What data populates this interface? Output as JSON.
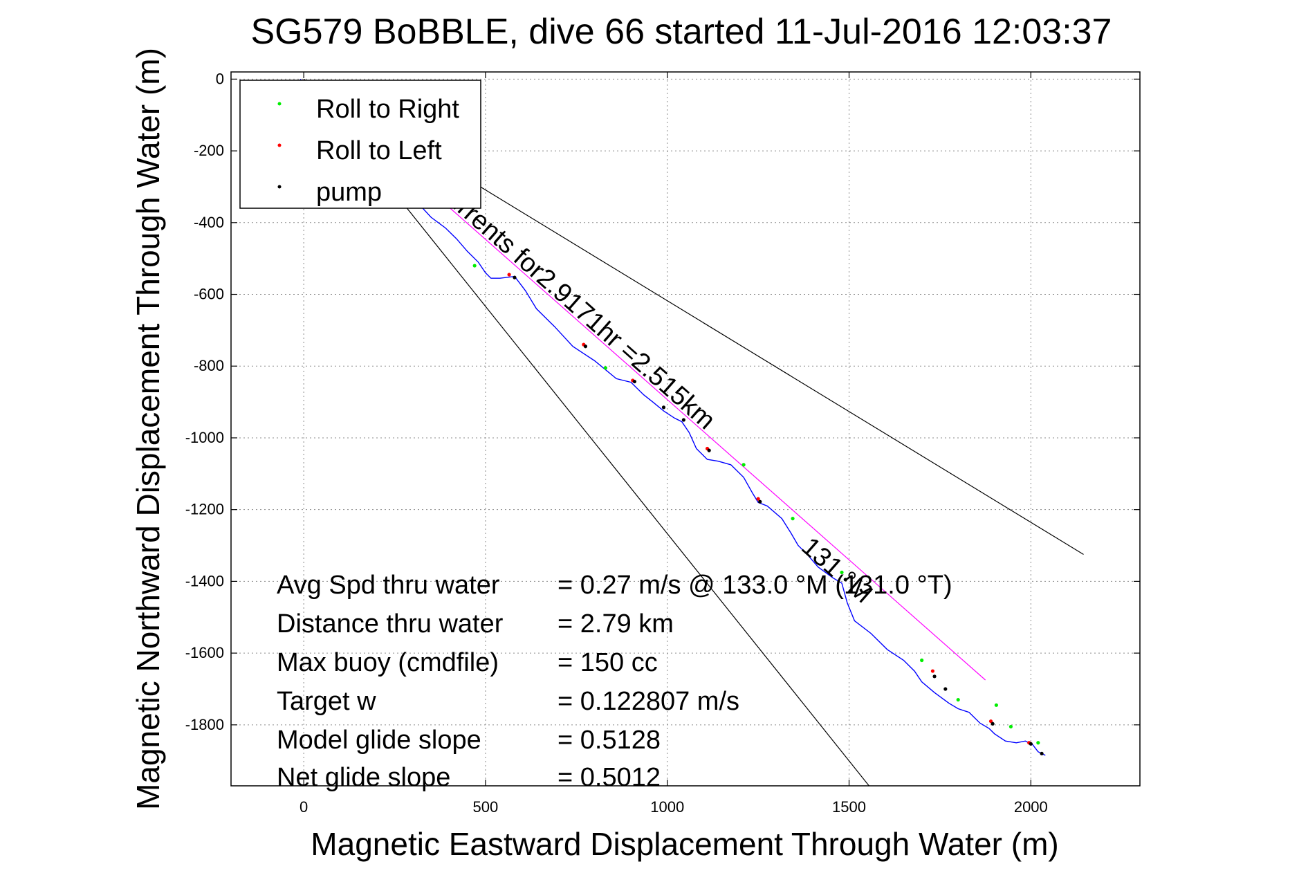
{
  "chart_data": {
    "type": "line",
    "title": "SG579 BoBBLE, dive 66 started 11-Jul-2016 12:03:37",
    "xlabel": "Magnetic Eastward Displacement Through Water (m)",
    "ylabel": "Magnetic Northward Displacement Through Water (m)",
    "xlim": [
      -200,
      2300
    ],
    "ylim": [
      -1970,
      20
    ],
    "xticks": [
      0,
      500,
      1000,
      1500,
      2000
    ],
    "xtick_labels": [
      "0",
      "500",
      "1000",
      "1500",
      "2000"
    ],
    "yticks": [
      0,
      -200,
      -400,
      -600,
      -800,
      -1000,
      -1200,
      -1400,
      -1600,
      -1800
    ],
    "ytick_labels": [
      "0",
      "-200",
      "-400",
      "-600",
      "-800",
      "-1000",
      "-1200",
      "-1400",
      "-1600",
      "-1800"
    ],
    "grid": true,
    "legend": {
      "position": "top-left",
      "entries": [
        {
          "label": "Roll to Right",
          "color": "#00ee00",
          "marker": "."
        },
        {
          "label": "Roll to Left",
          "color": "#ff0000",
          "marker": "."
        },
        {
          "label": "pump",
          "color": "#000000",
          "marker": "."
        }
      ]
    },
    "series": [
      {
        "color": "#0000ff",
        "x": [
          -10,
          0,
          30,
          60,
          100,
          140,
          190,
          240,
          300,
          350,
          390,
          420,
          450,
          480,
          500,
          515,
          540,
          580,
          610,
          640,
          690,
          740,
          770,
          800,
          830,
          860,
          900,
          935,
          960,
          990,
          1020,
          1040,
          1060,
          1080,
          1110,
          1140,
          1175,
          1210,
          1235,
          1250,
          1275,
          1315,
          1340,
          1360,
          1385,
          1415,
          1455,
          1480,
          1495,
          1515,
          1560,
          1605,
          1650,
          1680,
          1700,
          1735,
          1775,
          1800,
          1830,
          1860,
          1885,
          1900,
          1930,
          1960,
          1985,
          2005,
          2020,
          2040
        ],
        "y": [
          0,
          -10,
          -40,
          -80,
          -120,
          -170,
          -220,
          -280,
          -330,
          -385,
          -415,
          -445,
          -480,
          -510,
          -540,
          -555,
          -555,
          -550,
          -590,
          -640,
          -690,
          -745,
          -765,
          -785,
          -810,
          -835,
          -845,
          -880,
          -900,
          -925,
          -945,
          -955,
          -985,
          -1030,
          -1060,
          -1065,
          -1075,
          -1110,
          -1155,
          -1180,
          -1190,
          -1225,
          -1265,
          -1300,
          -1325,
          -1360,
          -1390,
          -1405,
          -1460,
          -1510,
          -1545,
          -1590,
          -1620,
          -1650,
          -1680,
          -1710,
          -1740,
          -1755,
          -1765,
          -1795,
          -1810,
          -1825,
          -1845,
          -1850,
          -1845,
          -1855,
          -1875,
          -1885
        ]
      },
      {
        "color": "#ff00ff",
        "x": [
          0,
          1875
        ],
        "y": [
          0,
          -1675
        ]
      },
      {
        "color": "#000000",
        "x": [
          0,
          2145
        ],
        "y": [
          0,
          -1325
        ]
      },
      {
        "color": "#000000",
        "x": [
          0,
          1555
        ],
        "y": [
          0,
          -1970
        ]
      }
    ],
    "markers": {
      "roll_right": {
        "color": "#00ee00",
        "x": [
          -5,
          470,
          830,
          1210,
          1345,
          1480,
          1700,
          1800,
          1905,
          1945,
          2020
        ],
        "y": [
          -15,
          -520,
          -805,
          -1075,
          -1225,
          -1375,
          -1620,
          -1730,
          -1745,
          -1805,
          -1850
        ]
      },
      "roll_left": {
        "color": "#ff0000",
        "x": [
          565,
          770,
          905,
          1110,
          1250,
          1730,
          1890,
          1995
        ],
        "y": [
          -545,
          -740,
          -840,
          -1030,
          -1170,
          -1650,
          -1790,
          -1850
        ]
      },
      "pump": {
        "color": "#000000",
        "x": [
          580,
          775,
          910,
          990,
          1045,
          1115,
          1255,
          1490,
          1735,
          1765,
          1895,
          2000,
          2030
        ],
        "y": [
          -553,
          -745,
          -843,
          -915,
          -950,
          -1035,
          -1178,
          -1395,
          -1665,
          -1700,
          -1797,
          -1853,
          -1880
        ]
      }
    },
    "annotations": [
      {
        "text": "Currents for2.9171hr =2.515km",
        "x": 350,
        "y": -305
      },
      {
        "text": "131 °M",
        "x": 1365,
        "y": -1310
      }
    ],
    "stats": [
      {
        "label": "Avg Spd thru water",
        "value": "=  0.27 m/s @ 133.0 °M (131.0 °T)"
      },
      {
        "label": "Distance thru water",
        "value": "=  2.79 km"
      },
      {
        "label": "Max buoy (cmdfile)",
        "value": "= 150 cc"
      },
      {
        "label": "Target w",
        "value": "= 0.122807 m/s"
      },
      {
        "label": "Model glide slope",
        "value": "= 0.5128"
      },
      {
        "label": "Net glide slope",
        "value": "= 0.5012"
      }
    ]
  }
}
